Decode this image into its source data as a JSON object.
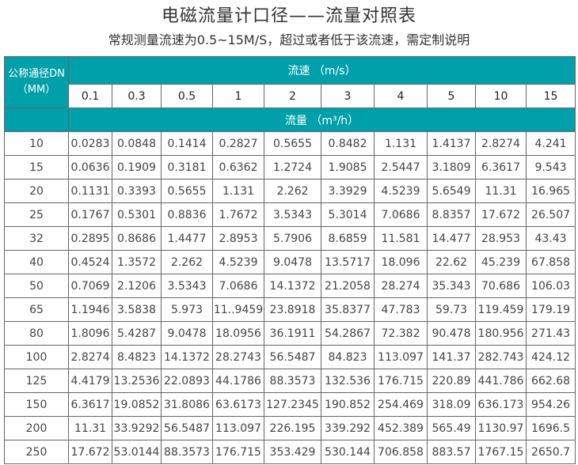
{
  "title": "电磁流量计口径——流量对照表",
  "subtitle": "常规测量流速为0.5~15M/S，超过或者低于该流速，需定制说明",
  "table": {
    "dn_header_line1": "公称通径DN",
    "dn_header_line2": "（MM）",
    "velocity_header": "流速 （m/s）",
    "flow_header": "流量 （m³/h）",
    "velocities": [
      "0.1",
      "0.3",
      "0.5",
      "1",
      "2",
      "3",
      "4",
      "5",
      "10",
      "15"
    ],
    "rows": [
      {
        "dn": "10",
        "values": [
          "0.0283",
          "0.0848",
          "0.1414",
          "0.2827",
          "0.5655",
          "0.8482",
          "1.131",
          "1.4137",
          "2.8274",
          "4.241"
        ]
      },
      {
        "dn": "15",
        "values": [
          "0.0636",
          "0.1909",
          "0.3181",
          "0.6362",
          "1.2724",
          "1.9085",
          "2.5447",
          "3.1809",
          "6.3617",
          "9.543"
        ]
      },
      {
        "dn": "20",
        "values": [
          "0.1131",
          "0.3393",
          "0.5655",
          "1.131",
          "2.262",
          "3.3929",
          "4.5239",
          "5.6549",
          "11.31",
          "16.965"
        ]
      },
      {
        "dn": "25",
        "values": [
          "0.1767",
          "0.5301",
          "0.8836",
          "1.7672",
          "3.5343",
          "5.3014",
          "7.0686",
          "8.8357",
          "17.672",
          "26.507"
        ]
      },
      {
        "dn": "32",
        "values": [
          "0.2895",
          "0.8686",
          "1.4477",
          "2.8953",
          "5.7906",
          "8.6859",
          "11.581",
          "14.477",
          "28.953",
          "43.43"
        ]
      },
      {
        "dn": "40",
        "values": [
          "0.4524",
          "1.3572",
          "2.262",
          "4.5239",
          "9.0478",
          "13.5717",
          "18.096",
          "22.62",
          "45.239",
          "67.858"
        ]
      },
      {
        "dn": "50",
        "values": [
          "0.7069",
          "2.1206",
          "3.5343",
          "7.0686",
          "14.1372",
          "21.2058",
          "28.274",
          "35.343",
          "70.686",
          "106.03"
        ]
      },
      {
        "dn": "65",
        "values": [
          "1.1946",
          "3.5838",
          "5.973",
          "11..9459",
          "23.8918",
          "35.8377",
          "47.783",
          "59.73",
          "119.459",
          "179.19"
        ]
      },
      {
        "dn": "80",
        "values": [
          "1.8096",
          "5.4287",
          "9.0478",
          "18.0956",
          "36.1911",
          "54.2867",
          "72.382",
          "90.478",
          "180.956",
          "271.43"
        ]
      },
      {
        "dn": "100",
        "values": [
          "2.8274",
          "8.4823",
          "14.1372",
          "28.2743",
          "56.5487",
          "84.823",
          "113.097",
          "141.37",
          "282.743",
          "424.12"
        ]
      },
      {
        "dn": "125",
        "values": [
          "4.4179",
          "13.2536",
          "22.0893",
          "44.1786",
          "88.3573",
          "132.536",
          "176.715",
          "220.89",
          "441.786",
          "662.68"
        ]
      },
      {
        "dn": "150",
        "values": [
          "6.3617",
          "19.0852",
          "31.8086",
          "63.6173",
          "127.2345",
          "190.852",
          "254.469",
          "318.09",
          "636.173",
          "954.26"
        ]
      },
      {
        "dn": "200",
        "values": [
          "11.31",
          "33.9292",
          "56.5487",
          "113.097",
          "226.195",
          "339.292",
          "452.389",
          "565.49",
          "1130.97",
          "1696.5"
        ]
      },
      {
        "dn": "250",
        "values": [
          "17.672",
          "53.0144",
          "88.3573",
          "176.715",
          "353.429",
          "530.144",
          "706.858",
          "883.57",
          "1767.15",
          "2650.7"
        ]
      }
    ]
  },
  "colors": {
    "header_bg": "#00a0aa",
    "header_text": "#ffffff",
    "border": "#666666"
  }
}
